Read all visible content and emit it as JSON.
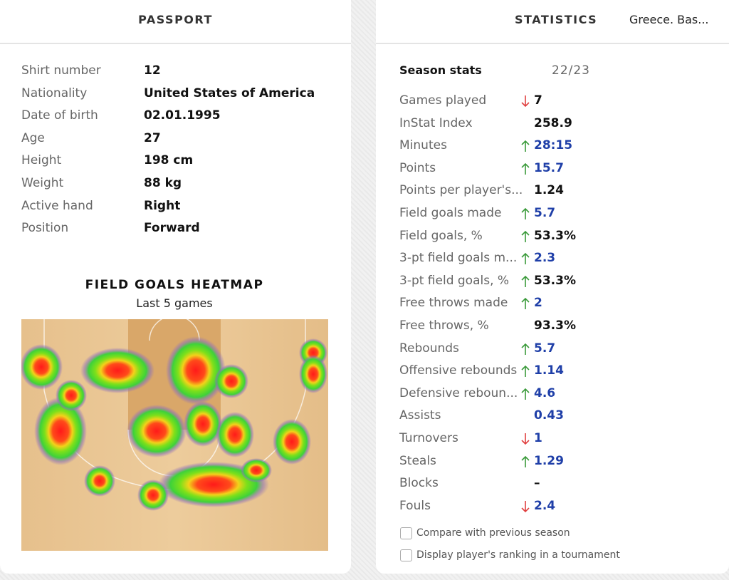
{
  "passport": {
    "title": "PASSPORT",
    "rows": [
      {
        "label": "Shirt number",
        "value": "12"
      },
      {
        "label": "Nationality",
        "value": "United States of America"
      },
      {
        "label": "Date of birth",
        "value": "02.01.1995"
      },
      {
        "label": "Age",
        "value": "27"
      },
      {
        "label": "Height",
        "value": "198 cm"
      },
      {
        "label": "Weight",
        "value": "88 kg"
      },
      {
        "label": "Active hand",
        "value": "Right"
      },
      {
        "label": "Position",
        "value": "Forward"
      }
    ]
  },
  "heatmap": {
    "title": "FIELD GOALS HEATMAP",
    "subtitle": "Last 5 games"
  },
  "statistics": {
    "title": "STATISTICS",
    "tournament": "Greece. Bas...",
    "section": "Season stats",
    "season": "22/23",
    "rows": [
      {
        "label": "Games played",
        "trend": "down",
        "value": "7",
        "color": "#111111"
      },
      {
        "label": "InStat Index",
        "trend": null,
        "value": "258.9",
        "color": "#111111"
      },
      {
        "label": "Minutes",
        "trend": "up",
        "value": "28:15",
        "color": "#1f3fa8"
      },
      {
        "label": "Points",
        "trend": "up",
        "value": "15.7",
        "color": "#1f3fa8"
      },
      {
        "label": "Points per player's...",
        "trend": null,
        "value": "1.24",
        "color": "#111111"
      },
      {
        "label": "Field goals made",
        "trend": "up",
        "value": "5.7",
        "color": "#1f3fa8"
      },
      {
        "label": "Field goals, %",
        "trend": "up",
        "value": "53.3%",
        "color": "#111111"
      },
      {
        "label": "3-pt field goals m...",
        "trend": "up",
        "value": "2.3",
        "color": "#1f3fa8"
      },
      {
        "label": "3-pt field goals, %",
        "trend": "up",
        "value": "53.3%",
        "color": "#111111"
      },
      {
        "label": "Free throws made",
        "trend": "up",
        "value": "2",
        "color": "#1f3fa8"
      },
      {
        "label": "Free throws, %",
        "trend": null,
        "value": "93.3%",
        "color": "#111111"
      },
      {
        "label": "Rebounds",
        "trend": "up",
        "value": "5.7",
        "color": "#1f3fa8"
      },
      {
        "label": "Offensive rebounds",
        "trend": "up",
        "value": "1.14",
        "color": "#1f3fa8"
      },
      {
        "label": "Defensive reboun...",
        "trend": "up",
        "value": "4.6",
        "color": "#1f3fa8"
      },
      {
        "label": "Assists",
        "trend": null,
        "value": "0.43",
        "color": "#1f3fa8"
      },
      {
        "label": "Turnovers",
        "trend": "down",
        "value": "1",
        "color": "#1f3fa8"
      },
      {
        "label": "Steals",
        "trend": "up",
        "value": "1.29",
        "color": "#1f3fa8"
      },
      {
        "label": "Blocks",
        "trend": null,
        "value": "–",
        "color": "#111111"
      },
      {
        "label": "Fouls",
        "trend": "down",
        "value": "2.4",
        "color": "#1f3fa8"
      }
    ],
    "options": [
      "Compare with previous season",
      "Display player's ranking in a tournament"
    ]
  }
}
